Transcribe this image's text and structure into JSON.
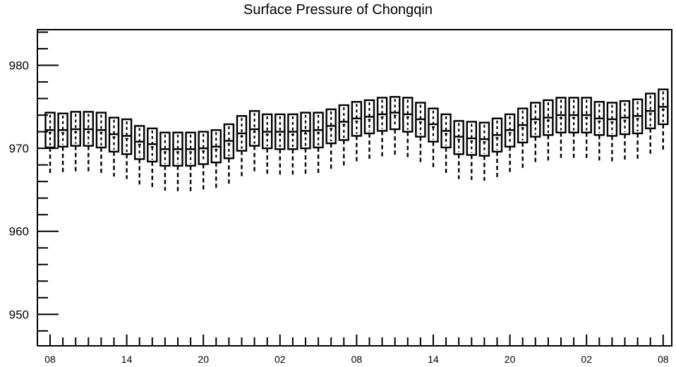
{
  "chart_data": {
    "type": "box",
    "title": "Surface Pressure of Chongqin",
    "xlabel": "",
    "ylabel": "",
    "ylim": [
      946.2,
      984.3
    ],
    "y_ticks": [
      950,
      960,
      970,
      980
    ],
    "x_tick_labels": [
      "08",
      "14",
      "20",
      "02",
      "08",
      "14",
      "20",
      "02",
      "08"
    ],
    "x_tick_positions": [
      0,
      6,
      12,
      18,
      24,
      30,
      36,
      42,
      48
    ],
    "grid": false,
    "boxes": [
      {
        "x": 0,
        "whisker_low": 967.0,
        "q1": 970.1,
        "median": 972.2,
        "q3": 974.3
      },
      {
        "x": 1,
        "whisker_low": 967.1,
        "q1": 970.2,
        "median": 972.2,
        "q3": 974.2
      },
      {
        "x": 2,
        "whisker_low": 967.2,
        "q1": 970.3,
        "median": 972.3,
        "q3": 974.4
      },
      {
        "x": 3,
        "whisker_low": 967.2,
        "q1": 970.3,
        "median": 972.3,
        "q3": 974.4
      },
      {
        "x": 4,
        "whisker_low": 967.0,
        "q1": 970.1,
        "median": 972.2,
        "q3": 974.3
      },
      {
        "x": 5,
        "whisker_low": 966.6,
        "q1": 969.6,
        "median": 971.7,
        "q3": 973.7
      },
      {
        "x": 6,
        "whisker_low": 966.3,
        "q1": 969.3,
        "median": 971.5,
        "q3": 973.5
      },
      {
        "x": 7,
        "whisker_low": 965.6,
        "q1": 968.7,
        "median": 970.8,
        "q3": 972.7
      },
      {
        "x": 8,
        "whisker_low": 965.3,
        "q1": 968.4,
        "median": 970.5,
        "q3": 972.4
      },
      {
        "x": 9,
        "whisker_low": 964.9,
        "q1": 967.9,
        "median": 969.9,
        "q3": 971.9
      },
      {
        "x": 10,
        "whisker_low": 964.8,
        "q1": 967.9,
        "median": 969.9,
        "q3": 971.9
      },
      {
        "x": 11,
        "whisker_low": 964.8,
        "q1": 967.9,
        "median": 969.9,
        "q3": 971.9
      },
      {
        "x": 12,
        "whisker_low": 964.9,
        "q1": 968.1,
        "median": 970.0,
        "q3": 972.0
      },
      {
        "x": 13,
        "whisker_low": 965.0,
        "q1": 968.3,
        "median": 970.2,
        "q3": 972.2
      },
      {
        "x": 14,
        "whisker_low": 965.6,
        "q1": 968.8,
        "median": 970.9,
        "q3": 972.9
      },
      {
        "x": 15,
        "whisker_low": 966.6,
        "q1": 969.7,
        "median": 971.8,
        "q3": 973.9
      },
      {
        "x": 16,
        "whisker_low": 967.2,
        "q1": 970.3,
        "median": 972.3,
        "q3": 974.5
      },
      {
        "x": 17,
        "whisker_low": 966.9,
        "q1": 970.0,
        "median": 972.0,
        "q3": 974.1
      },
      {
        "x": 18,
        "whisker_low": 966.8,
        "q1": 969.9,
        "median": 972.0,
        "q3": 974.1
      },
      {
        "x": 19,
        "whisker_low": 966.8,
        "q1": 969.9,
        "median": 972.0,
        "q3": 974.1
      },
      {
        "x": 20,
        "whisker_low": 966.9,
        "q1": 970.0,
        "median": 972.1,
        "q3": 974.3
      },
      {
        "x": 21,
        "whisker_low": 967.0,
        "q1": 970.1,
        "median": 972.2,
        "q3": 974.3
      },
      {
        "x": 22,
        "whisker_low": 967.5,
        "q1": 970.6,
        "median": 972.7,
        "q3": 974.7
      },
      {
        "x": 23,
        "whisker_low": 967.9,
        "q1": 971.0,
        "median": 973.2,
        "q3": 975.2
      },
      {
        "x": 24,
        "whisker_low": 968.4,
        "q1": 971.5,
        "median": 973.6,
        "q3": 975.6
      },
      {
        "x": 25,
        "whisker_low": 968.6,
        "q1": 971.8,
        "median": 973.8,
        "q3": 975.8
      },
      {
        "x": 26,
        "whisker_low": 969.0,
        "q1": 972.1,
        "median": 974.1,
        "q3": 976.1
      },
      {
        "x": 27,
        "whisker_low": 969.2,
        "q1": 972.3,
        "median": 974.3,
        "q3": 976.2
      },
      {
        "x": 28,
        "whisker_low": 968.9,
        "q1": 972.0,
        "median": 974.1,
        "q3": 976.1
      },
      {
        "x": 29,
        "whisker_low": 968.3,
        "q1": 971.4,
        "median": 973.5,
        "q3": 975.5
      },
      {
        "x": 30,
        "whisker_low": 967.7,
        "q1": 970.8,
        "median": 972.9,
        "q3": 974.8
      },
      {
        "x": 31,
        "whisker_low": 967.0,
        "q1": 970.1,
        "median": 972.1,
        "q3": 974.1
      },
      {
        "x": 32,
        "whisker_low": 966.3,
        "q1": 969.3,
        "median": 971.4,
        "q3": 973.3
      },
      {
        "x": 33,
        "whisker_low": 966.2,
        "q1": 969.2,
        "median": 971.2,
        "q3": 973.2
      },
      {
        "x": 34,
        "whisker_low": 966.1,
        "q1": 969.1,
        "median": 971.1,
        "q3": 973.1
      },
      {
        "x": 35,
        "whisker_low": 966.5,
        "q1": 969.6,
        "median": 971.6,
        "q3": 973.6
      },
      {
        "x": 36,
        "whisker_low": 967.0,
        "q1": 970.2,
        "median": 972.2,
        "q3": 974.1
      },
      {
        "x": 37,
        "whisker_low": 967.6,
        "q1": 970.7,
        "median": 972.8,
        "q3": 974.8
      },
      {
        "x": 38,
        "whisker_low": 968.3,
        "q1": 971.4,
        "median": 973.5,
        "q3": 975.5
      },
      {
        "x": 39,
        "whisker_low": 968.5,
        "q1": 971.6,
        "median": 973.7,
        "q3": 975.8
      },
      {
        "x": 40,
        "whisker_low": 968.7,
        "q1": 971.9,
        "median": 974.0,
        "q3": 976.1
      },
      {
        "x": 41,
        "whisker_low": 968.8,
        "q1": 971.9,
        "median": 974.0,
        "q3": 976.1
      },
      {
        "x": 42,
        "whisker_low": 968.7,
        "q1": 971.9,
        "median": 974.0,
        "q3": 976.1
      },
      {
        "x": 43,
        "whisker_low": 968.4,
        "q1": 971.6,
        "median": 973.6,
        "q3": 975.6
      },
      {
        "x": 44,
        "whisker_low": 968.3,
        "q1": 971.5,
        "median": 973.5,
        "q3": 975.5
      },
      {
        "x": 45,
        "whisker_low": 968.5,
        "q1": 971.7,
        "median": 973.7,
        "q3": 975.7
      },
      {
        "x": 46,
        "whisker_low": 968.7,
        "q1": 971.8,
        "median": 973.9,
        "q3": 975.9
      },
      {
        "x": 47,
        "whisker_low": 969.2,
        "q1": 972.4,
        "median": 974.5,
        "q3": 976.6
      },
      {
        "x": 48,
        "whisker_low": 969.7,
        "q1": 972.9,
        "median": 975.0,
        "q3": 977.1
      }
    ]
  }
}
